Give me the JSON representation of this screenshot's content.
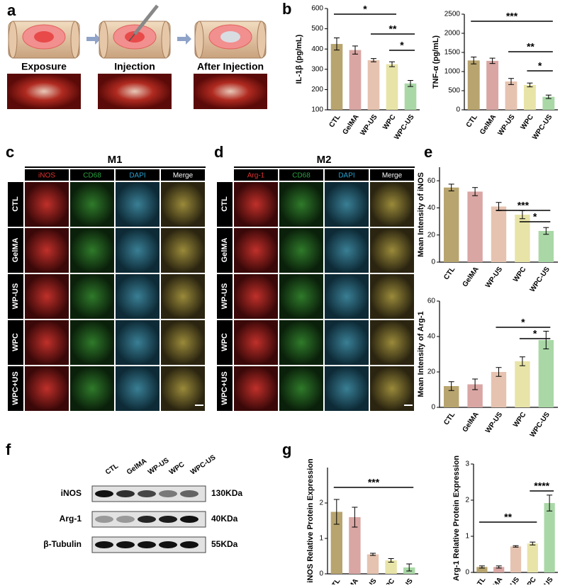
{
  "panel_labels": [
    "a",
    "b",
    "c",
    "d",
    "e",
    "f",
    "g"
  ],
  "panel_a": {
    "steps": [
      "Exposure",
      "Injection",
      "After Injection"
    ]
  },
  "panel_c": {
    "title": "M1",
    "channels": [
      "iNOS",
      "CD68",
      "DAPI",
      "Merge"
    ],
    "groups": [
      "CTL",
      "GelMA",
      "WP-US",
      "WPC",
      "WPC+US"
    ]
  },
  "panel_d": {
    "title": "M2",
    "channels": [
      "Arg-1",
      "CD68",
      "DAPI",
      "Merge"
    ],
    "groups": [
      "CTL",
      "GelMA",
      "WP-US",
      "WPC",
      "WPC+US"
    ]
  },
  "panel_f": {
    "groups": [
      "CTL",
      "GelMA",
      "WP-US",
      "WPC",
      "WPC-US"
    ],
    "proteins": [
      "iNOS",
      "Arg-1",
      "β-Tubulin"
    ],
    "sizes": [
      "130KDa",
      "40KDa",
      "55KDa"
    ]
  },
  "chart_data": [
    {
      "type": "bar",
      "y_label": "IL-1β (pg/mL)",
      "categories": [
        "CTL",
        "GelMA",
        "WP-US",
        "WPC",
        "WPC-US"
      ],
      "colors": [
        "#b8a46e",
        "#d9a6a3",
        "#e6c3b0",
        "#e8e4a8",
        "#a9d8a6"
      ],
      "values": [
        425,
        395,
        345,
        325,
        230
      ],
      "errors": [
        30,
        20,
        8,
        12,
        15
      ],
      "ylim": [
        100,
        600
      ],
      "yticks": [
        100,
        200,
        300,
        400,
        500,
        600
      ],
      "annotations": [
        "*",
        "**",
        "*"
      ]
    },
    {
      "type": "bar",
      "y_label": "TNF-α (pg/mL)",
      "categories": [
        "CTL",
        "GelMA",
        "WP-US",
        "WPC",
        "WPC-US"
      ],
      "colors": [
        "#b8a46e",
        "#d9a6a3",
        "#e6c3b0",
        "#e8e4a8",
        "#a9d8a6"
      ],
      "values": [
        1290,
        1280,
        740,
        650,
        340
      ],
      "errors": [
        90,
        70,
        80,
        50,
        45
      ],
      "ylim": [
        0,
        2500
      ],
      "yticks": [
        0,
        500,
        1000,
        1500,
        2000,
        2500
      ],
      "annotations": [
        "***",
        "**",
        "*"
      ]
    },
    {
      "type": "bar",
      "y_label": "Mean Intensity of iNOS",
      "categories": [
        "CTL",
        "GelMA",
        "WP-US",
        "WPC",
        "WPC-US"
      ],
      "colors": [
        "#b8a46e",
        "#d9a6a3",
        "#e6c3b0",
        "#e8e4a8",
        "#a9d8a6"
      ],
      "values": [
        55,
        52,
        41,
        35,
        23
      ],
      "errors": [
        2.5,
        3,
        3,
        3,
        2.5
      ],
      "ylim": [
        0,
        70
      ],
      "yticks": [
        0,
        20,
        40,
        60
      ],
      "annotations": [
        "***",
        "*"
      ]
    },
    {
      "type": "bar",
      "y_label": "Mean Intensity of Arg-1",
      "categories": [
        "CTL",
        "GelMA",
        "WP-US",
        "WPC",
        "WPC-US"
      ],
      "colors": [
        "#b8a46e",
        "#d9a6a3",
        "#e6c3b0",
        "#e8e4a8",
        "#a9d8a6"
      ],
      "values": [
        12,
        13,
        20,
        26,
        38
      ],
      "errors": [
        2.5,
        3,
        2.5,
        2.5,
        5
      ],
      "ylim": [
        0,
        60
      ],
      "yticks": [
        0,
        20,
        40,
        60
      ],
      "annotations": [
        "*",
        "*"
      ]
    },
    {
      "type": "bar",
      "y_label": "iNOS Relative Protein Expression",
      "categories": [
        "CTL",
        "GelMA",
        "WP-US",
        "WPC",
        "WPC-US"
      ],
      "colors": [
        "#b8a46e",
        "#d9a6a3",
        "#e6c3b0",
        "#e8e4a8",
        "#a9d8a6"
      ],
      "values": [
        1.75,
        1.6,
        0.55,
        0.38,
        0.18
      ],
      "errors": [
        0.35,
        0.28,
        0.03,
        0.05,
        0.1
      ],
      "ylim": [
        0,
        3
      ],
      "yticks": [
        0,
        1,
        2
      ],
      "annotations": [
        "***"
      ]
    },
    {
      "type": "bar",
      "y_label": "Arg-1 Relative Protein Expression",
      "categories": [
        "CTL",
        "GelMA",
        "WP-US",
        "WPC",
        "WPC-US"
      ],
      "colors": [
        "#b8a46e",
        "#d9a6a3",
        "#e6c3b0",
        "#e8e4a8",
        "#a9d8a6"
      ],
      "values": [
        0.15,
        0.15,
        0.72,
        0.8,
        1.92
      ],
      "errors": [
        0.03,
        0.03,
        0.02,
        0.04,
        0.22
      ],
      "ylim": [
        0,
        3
      ],
      "yticks": [
        0,
        1,
        2,
        3
      ],
      "annotations": [
        "**",
        "****"
      ]
    }
  ]
}
